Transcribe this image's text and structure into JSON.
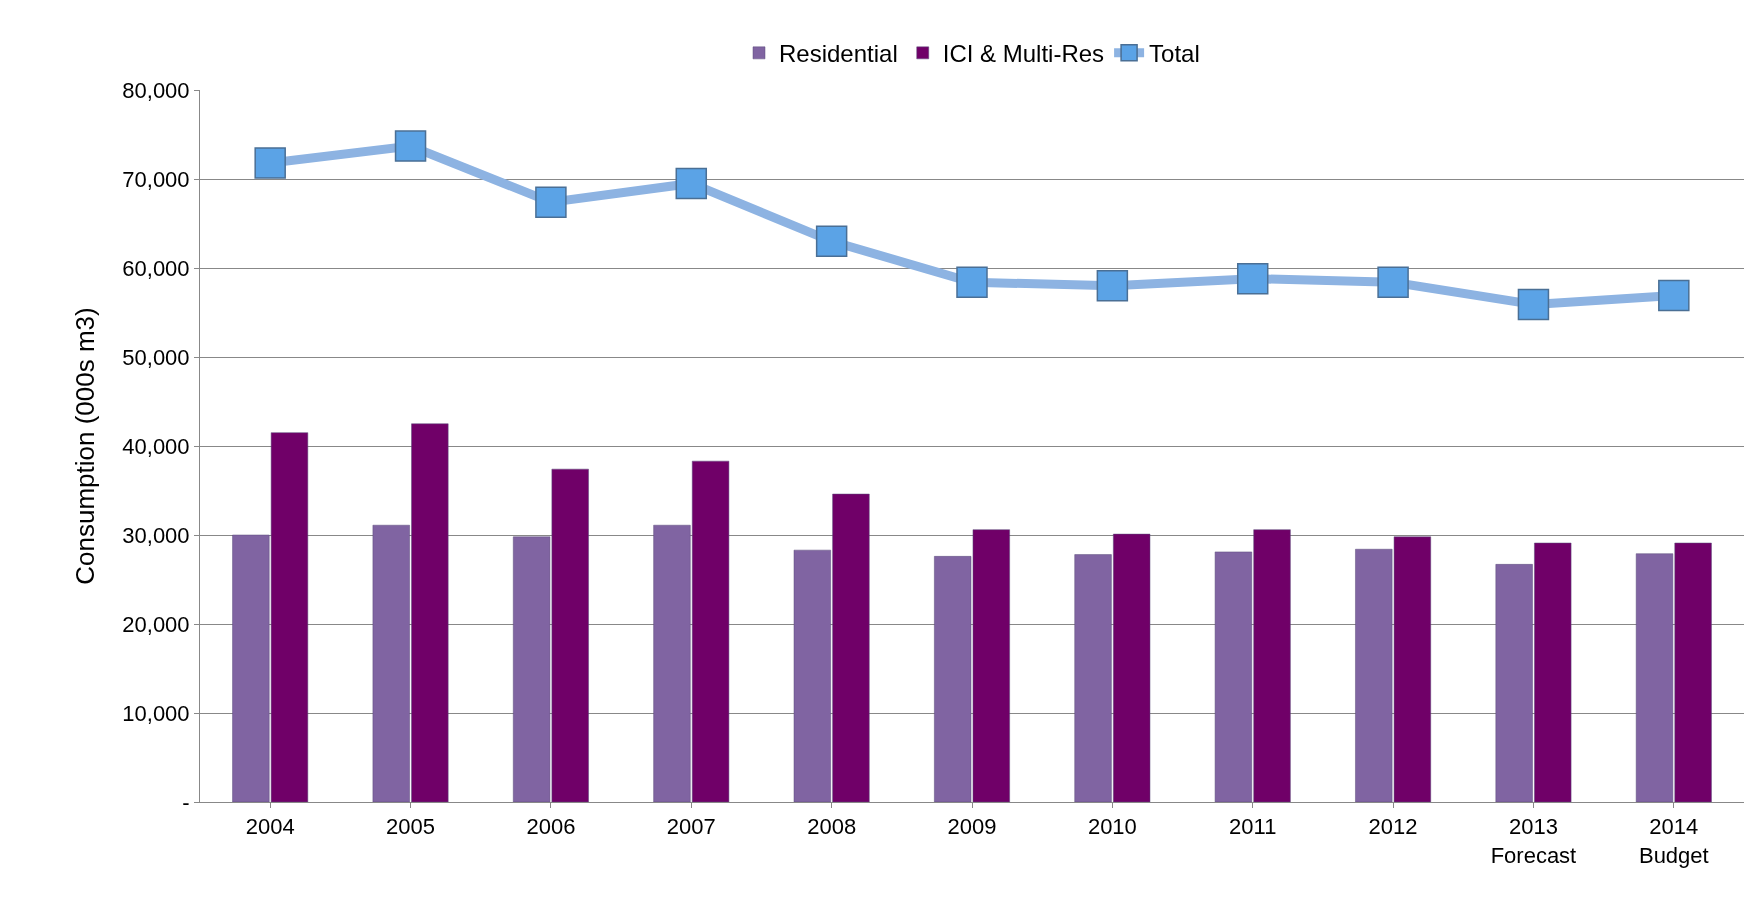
{
  "chart_data": {
    "type": "bar",
    "ylabel": "Consumption (000s m3)",
    "categories": [
      "2004",
      "2005",
      "2006",
      "2007",
      "2008",
      "2009",
      "2010",
      "2011",
      "2012",
      "2013\nForecast",
      "2014\nBudget"
    ],
    "series": [
      {
        "name": "Residential",
        "color": "#8064a2",
        "values": [
          30000,
          31100,
          29800,
          31100,
          28300,
          27600,
          27800,
          28100,
          28400,
          26700,
          27900
        ]
      },
      {
        "name": "ICI & Multi-Res",
        "color": "#700068",
        "values": [
          41500,
          42500,
          37400,
          38300,
          34600,
          30600,
          30100,
          30600,
          29800,
          29100,
          29100
        ]
      },
      {
        "name": "Total",
        "type": "line",
        "color": "#8db3e2",
        "marker": "square",
        "values": [
          71800,
          73700,
          67400,
          69500,
          63000,
          58400,
          58000,
          58800,
          58400,
          55900,
          56900
        ]
      }
    ],
    "ylim": [
      0,
      80000
    ],
    "yticks": [
      {
        "value": 0,
        "label": "-"
      },
      {
        "value": 10000,
        "label": "10,000"
      },
      {
        "value": 20000,
        "label": "20,000"
      },
      {
        "value": 30000,
        "label": "30,000"
      },
      {
        "value": 40000,
        "label": "40,000"
      },
      {
        "value": 50000,
        "label": "50,000"
      },
      {
        "value": 60000,
        "label": "60,000"
      },
      {
        "value": 70000,
        "label": "70,000"
      },
      {
        "value": 80000,
        "label": "80,000"
      }
    ],
    "grid": "y",
    "legend": "top"
  }
}
